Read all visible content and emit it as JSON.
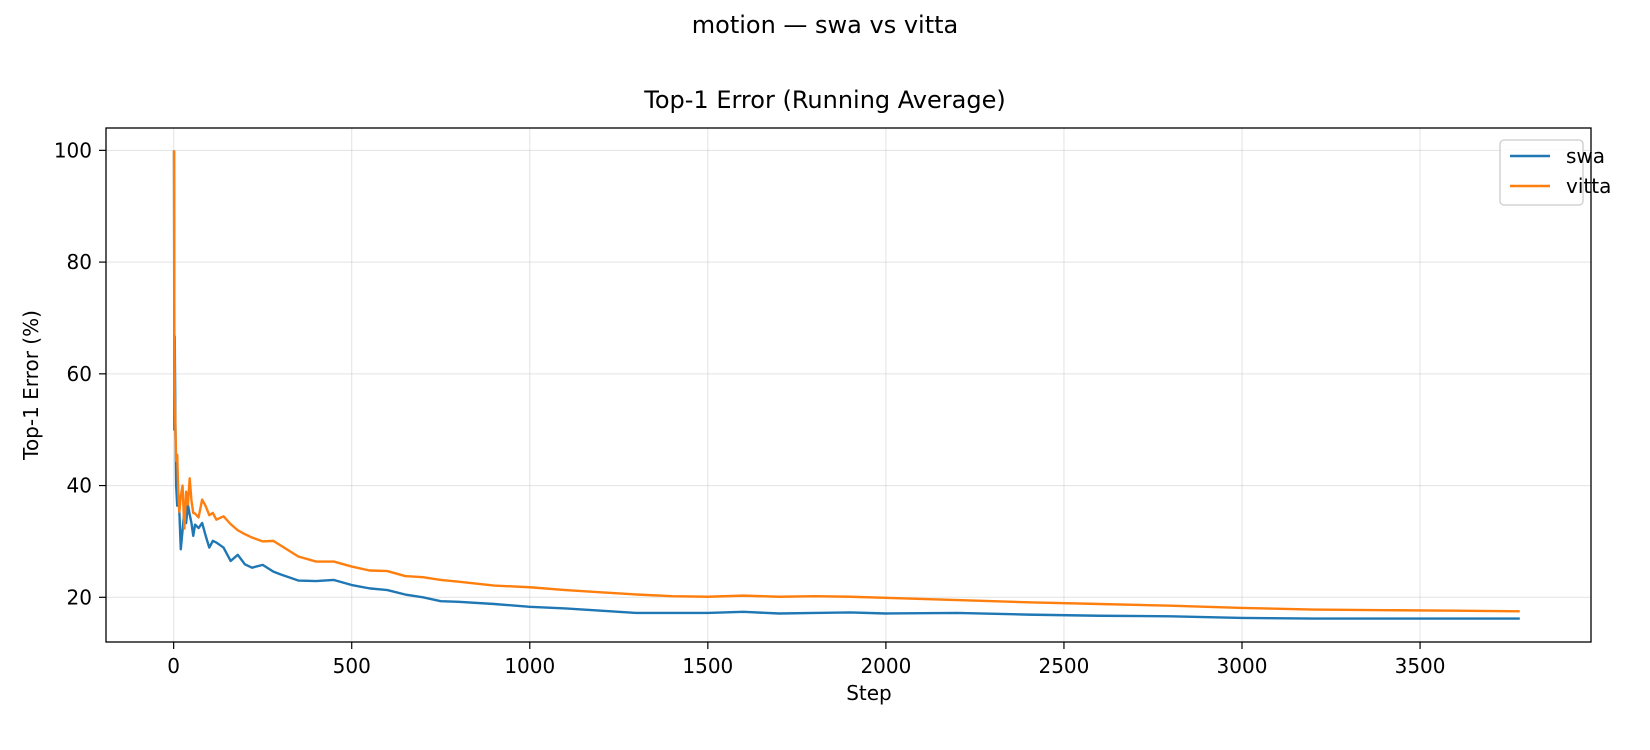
{
  "figure": {
    "suptitle": "motion — swa vs vitta"
  },
  "chart_data": {
    "type": "line",
    "title": "Top-1 Error (Running Average)",
    "xlabel": "Step",
    "ylabel": "Top-1 Error (%)",
    "xlim": [
      -190,
      3980
    ],
    "ylim": [
      12,
      104
    ],
    "xticks": [
      0,
      500,
      1000,
      1500,
      2000,
      2500,
      3000,
      3500
    ],
    "yticks": [
      20,
      40,
      60,
      80,
      100
    ],
    "grid": true,
    "legend_position": "top-right",
    "series": [
      {
        "name": "swa",
        "color": "#1f77b4",
        "x": [
          1,
          2,
          3,
          5,
          7,
          10,
          13,
          16,
          20,
          25,
          30,
          35,
          40,
          45,
          50,
          55,
          60,
          70,
          80,
          90,
          100,
          110,
          120,
          140,
          160,
          180,
          200,
          220,
          250,
          280,
          300,
          350,
          400,
          450,
          500,
          550,
          600,
          650,
          700,
          750,
          800,
          900,
          1000,
          1100,
          1200,
          1300,
          1400,
          1500,
          1600,
          1700,
          1800,
          1900,
          2000,
          2200,
          2400,
          2600,
          2800,
          3000,
          3200,
          3400,
          3600,
          3780
        ],
        "y": [
          100,
          50,
          66.7,
          50,
          40,
          36.4,
          38.5,
          35.3,
          28.6,
          32,
          35.5,
          33.3,
          36.6,
          34.8,
          33.3,
          31,
          33,
          32.4,
          33.3,
          31,
          28.9,
          30.1,
          29.8,
          28.9,
          26.5,
          27.6,
          25.9,
          25.3,
          25.8,
          24.6,
          24.1,
          23,
          22.9,
          23.1,
          22.2,
          21.6,
          21.3,
          20.5,
          20,
          19.3,
          19.2,
          18.8,
          18.3,
          18,
          17.6,
          17.2,
          17.2,
          17.2,
          17.4,
          17.1,
          17.2,
          17.3,
          17.1,
          17.2,
          16.9,
          16.7,
          16.6,
          16.3,
          16.2,
          16.2,
          16.2,
          16.2
        ]
      },
      {
        "name": "vitta",
        "color": "#ff7f0e",
        "x": [
          1,
          2,
          3,
          5,
          7,
          10,
          13,
          16,
          20,
          25,
          30,
          35,
          40,
          45,
          50,
          55,
          60,
          70,
          80,
          90,
          100,
          110,
          120,
          140,
          160,
          180,
          200,
          220,
          250,
          280,
          300,
          350,
          400,
          450,
          500,
          550,
          600,
          650,
          700,
          750,
          800,
          900,
          1000,
          1100,
          1200,
          1300,
          1400,
          1500,
          1600,
          1700,
          1800,
          1900,
          2000,
          2200,
          2400,
          2600,
          2800,
          3000,
          3200,
          3400,
          3600,
          3780
        ],
        "y": [
          100,
          66.7,
          57.1,
          50,
          44.4,
          45.5,
          38.5,
          35.3,
          38.1,
          40,
          32.3,
          38.9,
          36.6,
          41.3,
          37.3,
          35.1,
          35,
          34.3,
          37.5,
          36.3,
          34.7,
          35.1,
          33.9,
          34.5,
          33.1,
          32,
          31.3,
          30.7,
          30,
          30.1,
          29.3,
          27.3,
          26.4,
          26.4,
          25.5,
          24.8,
          24.7,
          23.8,
          23.6,
          23.1,
          22.8,
          22.1,
          21.8,
          21.3,
          20.9,
          20.5,
          20.2,
          20.1,
          20.3,
          20.1,
          20.2,
          20.1,
          19.9,
          19.5,
          19.1,
          18.8,
          18.5,
          18.1,
          17.8,
          17.7,
          17.6,
          17.5
        ]
      }
    ]
  }
}
